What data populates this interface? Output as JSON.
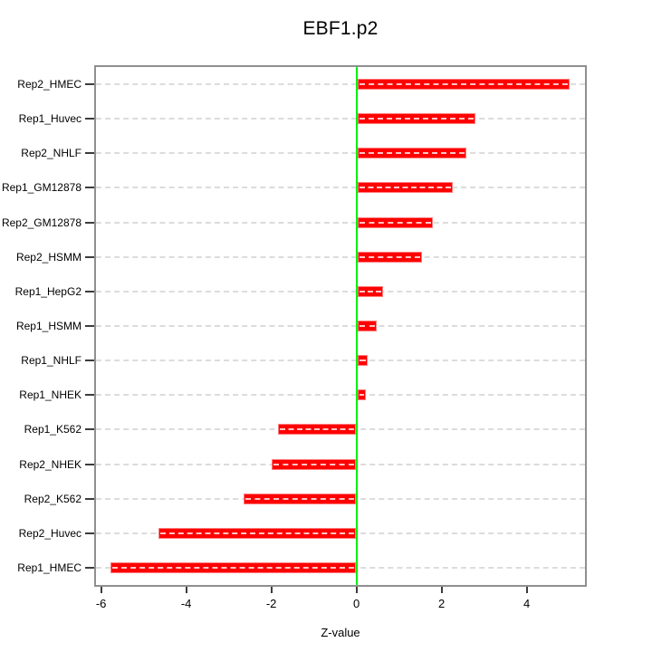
{
  "chart_data": {
    "type": "bar",
    "orientation": "horizontal",
    "title": "EBF1.p2",
    "xlabel": "Z-value",
    "ylabel": "",
    "categories": [
      "Rep2_HMEC",
      "Rep1_Huvec",
      "Rep2_NHLF",
      "Rep1_GM12878",
      "Rep2_GM12878",
      "Rep2_HSMM",
      "Rep1_HepG2",
      "Rep1_HSMM",
      "Rep1_NHLF",
      "Rep1_NHEK",
      "Rep1_K562",
      "Rep2_NHEK",
      "Rep2_K562",
      "Rep2_Huvec",
      "Rep1_HMEC"
    ],
    "values": [
      5.0,
      2.8,
      2.58,
      2.27,
      1.8,
      1.55,
      0.63,
      0.47,
      0.26,
      0.22,
      -1.85,
      -2.0,
      -2.65,
      -4.65,
      -5.77
    ],
    "xlim": [
      -6.12,
      5.37
    ],
    "xticks": [
      -6,
      -4,
      -2,
      0,
      2,
      4
    ],
    "grid": "horizontal dashed line per category",
    "legend_position": "none",
    "colors": {
      "bar": "#ff0000",
      "bar_inner_dash": "#ffffff",
      "zero_line": "#00ff00",
      "gridline": "#dcdcdc",
      "frame": "#8f8f8f",
      "text": "#000000"
    }
  }
}
